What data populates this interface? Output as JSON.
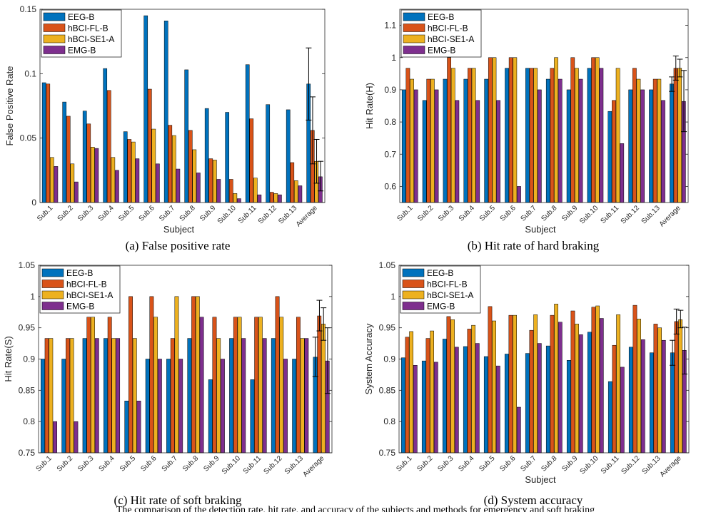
{
  "figure_caption": "The comparison of the detection rate, hit rate, and accuracy of the subjects and methods for emergency and soft braking",
  "legend_entries": [
    "EEG-B",
    "hBCI-FL-B",
    "hBCI-SE1-A",
    "EMG-B"
  ],
  "series_colors": [
    "#0072BD",
    "#D95319",
    "#EDB120",
    "#7E2F8E"
  ],
  "chart_data": [
    {
      "id": "a",
      "type": "bar",
      "caption": "(a) False positive rate",
      "xlabel": "Subject",
      "ylabel": "False Positive Rate",
      "ylim": [
        0,
        0.15
      ],
      "yticks": [
        0,
        0.05,
        0.1,
        0.15
      ],
      "ytick_labels": [
        "0",
        "0.05",
        "0.1",
        "0.15"
      ],
      "categories": [
        "Sub.1",
        "Sub.2",
        "Sub.3",
        "Sub.4",
        "Sub.5",
        "Sub.6",
        "Sub.7",
        "Sub.8",
        "Sub.9",
        "Sub.10",
        "Sub.11",
        "Sub.12",
        "Sub.13",
        "Average"
      ],
      "series": [
        {
          "name": "EEG-B",
          "values": [
            0.093,
            0.078,
            0.071,
            0.104,
            0.055,
            0.145,
            0.141,
            0.103,
            0.073,
            0.07,
            0.107,
            0.076,
            0.072,
            0.092
          ]
        },
        {
          "name": "hBCI-FL-B",
          "values": [
            0.092,
            0.067,
            0.061,
            0.087,
            0.049,
            0.088,
            0.06,
            0.056,
            0.034,
            0.018,
            0.065,
            0.008,
            0.031,
            0.056
          ]
        },
        {
          "name": "hBCI-SE1-A",
          "values": [
            0.035,
            0.03,
            0.043,
            0.035,
            0.047,
            0.057,
            0.052,
            0.041,
            0.033,
            0.007,
            0.019,
            0.007,
            0.017,
            0.032
          ]
        },
        {
          "name": "EMG-B",
          "values": [
            0.028,
            0.016,
            0.042,
            0.025,
            0.034,
            0.03,
            0.026,
            0.023,
            0.018,
            0.003,
            0.006,
            0.006,
            0.013,
            0.02
          ]
        }
      ],
      "error_bars": [
        [
          0.064,
          0.12
        ],
        [
          0.03,
          0.082
        ],
        [
          0.015,
          0.049
        ],
        [
          0.009,
          0.032
        ]
      ]
    },
    {
      "id": "b",
      "type": "bar",
      "caption": "(b) Hit rate of hard braking",
      "xlabel": "Subject",
      "ylabel": "Hit Rate(H)",
      "ylim": [
        0.55,
        1.15
      ],
      "yticks": [
        0.6,
        0.7,
        0.8,
        0.9,
        1,
        1.1
      ],
      "ytick_labels": [
        "0.6",
        "0.7",
        "0.8",
        "0.9",
        "1",
        "1.1"
      ],
      "categories": [
        "Sub.1",
        "Sub.2",
        "Sub.3",
        "Sub.4",
        "Sub.5",
        "Sub.6",
        "Sub.7",
        "Sub.8",
        "Sub.9",
        "Sub.10",
        "Sub.11",
        "Sub.12",
        "Sub.13",
        "Average"
      ],
      "series": [
        {
          "name": "EEG-B",
          "values": [
            0.9,
            0.867,
            0.933,
            0.933,
            0.933,
            0.967,
            0.967,
            0.933,
            0.9,
            0.967,
            0.833,
            0.9,
            0.9,
            0.918
          ]
        },
        {
          "name": "hBCI-FL-B",
          "values": [
            0.967,
            0.933,
            1.0,
            0.967,
            1.0,
            1.0,
            0.967,
            0.967,
            1.0,
            1.0,
            0.867,
            0.967,
            0.933,
            0.967
          ]
        },
        {
          "name": "hBCI-SE1-A",
          "values": [
            0.933,
            0.933,
            0.967,
            0.967,
            1.0,
            1.0,
            0.967,
            1.0,
            0.967,
            1.0,
            0.967,
            0.933,
            0.933,
            0.967
          ]
        },
        {
          "name": "EMG-B",
          "values": [
            0.9,
            0.9,
            0.867,
            0.867,
            0.867,
            0.6,
            0.9,
            0.933,
            0.933,
            0.967,
            0.733,
            0.9,
            0.867,
            0.864
          ]
        }
      ],
      "error_bars": [
        [
          0.895,
          0.94
        ],
        [
          0.93,
          1.005
        ],
        [
          0.94,
          0.995
        ],
        [
          0.77,
          0.96
        ]
      ]
    },
    {
      "id": "c",
      "type": "bar",
      "caption": "(c) Hit rate of soft braking",
      "xlabel": "",
      "ylabel": "Hit Rate(S)",
      "ylim": [
        0.75,
        1.05
      ],
      "yticks": [
        0.75,
        0.8,
        0.85,
        0.9,
        0.95,
        1,
        1.05
      ],
      "ytick_labels": [
        "0.75",
        "0.8",
        "0.85",
        "0.9",
        "0.95",
        "1",
        "1.05"
      ],
      "categories": [
        "Sub.1",
        "Sub.2",
        "Sub.3",
        "Sub.4",
        "Sub.5",
        "Sub.6",
        "Sub.7",
        "Sub.8",
        "Sub.9",
        "Sub.10",
        "Sub.11",
        "Sub.12",
        "Sub.13",
        "Average"
      ],
      "series": [
        {
          "name": "EEG-B",
          "values": [
            0.9,
            0.9,
            0.933,
            0.933,
            0.833,
            0.9,
            0.9,
            0.933,
            0.867,
            0.933,
            0.867,
            0.933,
            0.9,
            0.903
          ]
        },
        {
          "name": "hBCI-FL-B",
          "values": [
            0.933,
            0.933,
            0.967,
            0.967,
            1.0,
            1.0,
            0.933,
            1.0,
            0.967,
            0.967,
            0.967,
            1.0,
            0.967,
            0.969
          ]
        },
        {
          "name": "hBCI-SE1-A",
          "values": [
            0.933,
            0.933,
            0.967,
            0.933,
            0.933,
            0.967,
            1.0,
            1.0,
            0.933,
            0.967,
            0.967,
            0.967,
            0.933,
            0.956
          ]
        },
        {
          "name": "EMG-B",
          "values": [
            0.8,
            0.8,
            0.933,
            0.933,
            0.833,
            0.9,
            0.9,
            0.967,
            0.9,
            0.933,
            0.933,
            0.9,
            0.933,
            0.897
          ]
        }
      ],
      "error_bars": [
        [
          0.872,
          0.935
        ],
        [
          0.945,
          0.994
        ],
        [
          0.93,
          0.982
        ],
        [
          0.845,
          0.95
        ]
      ]
    },
    {
      "id": "d",
      "type": "bar",
      "caption": "(d) System accuracy",
      "xlabel": "Subject",
      "ylabel": "System Accuracy",
      "ylim": [
        0.75,
        1.05
      ],
      "yticks": [
        0.75,
        0.8,
        0.85,
        0.9,
        0.95,
        1,
        1.05
      ],
      "ytick_labels": [
        "0.75",
        "0.8",
        "0.85",
        "0.9",
        "0.95",
        "1",
        "1.05"
      ],
      "categories": [
        "Sub.1",
        "Sub.2",
        "Sub.3",
        "Sub.4",
        "Sub.5",
        "Sub.6",
        "Sub.7",
        "Sub.8",
        "Sub.9",
        "Sub.10",
        "Sub.11",
        "Sub.12",
        "Sub.13",
        "Average"
      ],
      "series": [
        {
          "name": "EEG-B",
          "values": [
            0.902,
            0.897,
            0.932,
            0.92,
            0.904,
            0.908,
            0.909,
            0.921,
            0.898,
            0.943,
            0.864,
            0.919,
            0.91,
            0.91
          ]
        },
        {
          "name": "hBCI-FL-B",
          "values": [
            0.935,
            0.933,
            0.968,
            0.948,
            0.984,
            0.97,
            0.946,
            0.97,
            0.977,
            0.983,
            0.922,
            0.986,
            0.956,
            0.96
          ]
        },
        {
          "name": "hBCI-SE1-A",
          "values": [
            0.944,
            0.945,
            0.963,
            0.954,
            0.961,
            0.97,
            0.971,
            0.988,
            0.956,
            0.985,
            0.971,
            0.964,
            0.95,
            0.963
          ]
        },
        {
          "name": "EMG-B",
          "values": [
            0.89,
            0.895,
            0.919,
            0.925,
            0.889,
            0.823,
            0.925,
            0.959,
            0.939,
            0.965,
            0.887,
            0.931,
            0.93,
            0.914
          ]
        }
      ],
      "error_bars": [
        [
          0.89,
          0.93
        ],
        [
          0.94,
          0.98
        ],
        [
          0.95,
          0.978
        ],
        [
          0.876,
          0.951
        ]
      ]
    }
  ]
}
